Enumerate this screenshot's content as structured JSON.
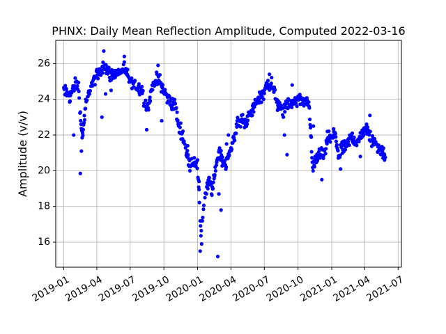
{
  "chart_data": {
    "type": "scatter",
    "title": "PHNX: Daily Mean Reflection Amplitude, Computed 2022-03-16",
    "xlabel": "",
    "ylabel": "Amplitude (v/v)",
    "xlim": [
      "2018-12-10",
      "2021-07-10"
    ],
    "ylim": [
      14.6,
      27.3
    ],
    "x_ticks": [
      "2019-01-01",
      "2019-04-01",
      "2019-07-01",
      "2019-10-01",
      "2020-01-01",
      "2020-04-01",
      "2020-07-01",
      "2020-10-01",
      "2021-01-01",
      "2021-04-01",
      "2021-07-01"
    ],
    "x_tick_labels": [
      "2019-01",
      "2019-04",
      "2019-07",
      "2019-10",
      "2020-01",
      "2020-04",
      "2020-07",
      "2020-10",
      "2021-01",
      "2021-04",
      "2021-07"
    ],
    "y_ticks": [
      16,
      18,
      20,
      22,
      24,
      26
    ],
    "grid": true,
    "marker_color": "#0000ff",
    "series": [
      {
        "trend": [
          [
            "2019-01-01",
            24.5
          ],
          [
            "2019-01-10",
            24.3
          ],
          [
            "2019-01-20",
            24.2
          ],
          [
            "2019-02-01",
            24.9
          ],
          [
            "2019-02-10",
            24.7
          ],
          [
            "2019-02-20",
            21.8
          ],
          [
            "2019-03-01",
            23.5
          ],
          [
            "2019-03-10",
            24.3
          ],
          [
            "2019-03-20",
            24.9
          ],
          [
            "2019-04-01",
            25.3
          ],
          [
            "2019-04-10",
            25.6
          ],
          [
            "2019-04-20",
            25.9
          ],
          [
            "2019-05-01",
            25.6
          ],
          [
            "2019-05-10",
            25.3
          ],
          [
            "2019-05-20",
            25.5
          ],
          [
            "2019-06-01",
            25.4
          ],
          [
            "2019-06-10",
            25.7
          ],
          [
            "2019-06-20",
            25.5
          ],
          [
            "2019-07-01",
            25.0
          ],
          [
            "2019-07-10",
            24.8
          ],
          [
            "2019-07-20",
            24.7
          ],
          [
            "2019-08-01",
            24.6
          ],
          [
            "2019-08-10",
            23.8
          ],
          [
            "2019-08-20",
            23.6
          ],
          [
            "2019-09-01",
            24.9
          ],
          [
            "2019-09-10",
            25.1
          ],
          [
            "2019-09-20",
            25.0
          ],
          [
            "2019-10-01",
            24.5
          ],
          [
            "2019-10-10",
            24.1
          ],
          [
            "2019-10-20",
            23.8
          ],
          [
            "2019-11-01",
            23.7
          ],
          [
            "2019-11-10",
            22.5
          ],
          [
            "2019-11-20",
            22.1
          ],
          [
            "2019-12-01",
            21.0
          ],
          [
            "2019-12-10",
            20.4
          ],
          [
            "2019-12-20",
            20.6
          ],
          [
            "2020-01-01",
            20.3
          ],
          [
            "2020-01-10",
            16.5
          ],
          [
            "2020-01-20",
            18.4
          ],
          [
            "2020-02-01",
            19.5
          ],
          [
            "2020-02-10",
            18.8
          ],
          [
            "2020-02-20",
            20.3
          ],
          [
            "2020-03-01",
            21.2
          ],
          [
            "2020-03-10",
            20.5
          ],
          [
            "2020-03-20",
            20.4
          ],
          [
            "2020-04-01",
            21.2
          ],
          [
            "2020-04-10",
            22.0
          ],
          [
            "2020-04-20",
            22.6
          ],
          [
            "2020-05-01",
            22.9
          ],
          [
            "2020-05-10",
            22.7
          ],
          [
            "2020-05-20",
            23.0
          ],
          [
            "2020-06-01",
            23.5
          ],
          [
            "2020-06-10",
            23.9
          ],
          [
            "2020-06-20",
            24.2
          ],
          [
            "2020-07-01",
            24.4
          ],
          [
            "2020-07-10",
            24.9
          ],
          [
            "2020-07-20",
            24.9
          ],
          [
            "2020-08-01",
            24.1
          ],
          [
            "2020-08-10",
            23.5
          ],
          [
            "2020-08-20",
            23.3
          ],
          [
            "2020-09-01",
            23.8
          ],
          [
            "2020-09-10",
            23.6
          ],
          [
            "2020-09-20",
            23.9
          ],
          [
            "2020-10-01",
            24.0
          ],
          [
            "2020-10-10",
            23.9
          ],
          [
            "2020-10-20",
            24.0
          ],
          [
            "2020-11-01",
            23.5
          ],
          [
            "2020-11-10",
            20.1
          ],
          [
            "2020-11-20",
            20.6
          ],
          [
            "2020-12-01",
            21.1
          ],
          [
            "2020-12-10",
            20.7
          ],
          [
            "2020-12-20",
            21.7
          ],
          [
            "2021-01-01",
            21.9
          ],
          [
            "2021-01-10",
            22.1
          ],
          [
            "2021-01-20",
            20.8
          ],
          [
            "2021-02-01",
            21.3
          ],
          [
            "2021-02-10",
            21.4
          ],
          [
            "2021-02-20",
            21.8
          ],
          [
            "2021-03-01",
            21.9
          ],
          [
            "2021-03-10",
            21.5
          ],
          [
            "2021-03-20",
            21.9
          ],
          [
            "2021-04-01",
            22.4
          ],
          [
            "2021-04-10",
            22.2
          ],
          [
            "2021-04-20",
            21.6
          ],
          [
            "2021-05-01",
            21.7
          ],
          [
            "2021-05-10",
            21.2
          ],
          [
            "2021-05-20",
            21.0
          ],
          [
            "2021-05-28",
            20.8
          ]
        ],
        "outliers": [
          [
            "2019-02-15",
            19.85
          ],
          [
            "2019-02-18",
            21.1
          ],
          [
            "2019-01-28",
            22.0
          ],
          [
            "2019-04-20",
            26.7
          ],
          [
            "2019-06-15",
            26.4
          ],
          [
            "2019-04-25",
            24.3
          ],
          [
            "2019-05-10",
            24.5
          ],
          [
            "2019-04-15",
            23.0
          ],
          [
            "2019-08-15",
            22.3
          ],
          [
            "2019-09-15",
            25.9
          ],
          [
            "2019-09-25",
            22.8
          ],
          [
            "2019-12-05",
            21.4
          ],
          [
            "2020-01-08",
            15.5
          ],
          [
            "2020-01-12",
            15.9
          ],
          [
            "2020-01-05",
            19.4
          ],
          [
            "2020-02-25",
            15.2
          ],
          [
            "2020-03-05",
            17.8
          ],
          [
            "2020-02-28",
            18.7
          ],
          [
            "2020-03-20",
            21.5
          ],
          [
            "2020-03-25",
            22.0
          ],
          [
            "2020-07-15",
            25.4
          ],
          [
            "2020-08-25",
            22.0
          ],
          [
            "2020-09-01",
            20.9
          ],
          [
            "2020-09-15",
            24.8
          ],
          [
            "2020-10-25",
            24.0
          ],
          [
            "2020-11-12",
            22.5
          ],
          [
            "2020-12-05",
            19.5
          ],
          [
            "2020-12-20",
            22.2
          ],
          [
            "2021-01-25",
            20.1
          ],
          [
            "2021-03-20",
            20.8
          ],
          [
            "2021-04-15",
            23.1
          ],
          [
            "2021-05-25",
            20.6
          ]
        ]
      }
    ]
  }
}
